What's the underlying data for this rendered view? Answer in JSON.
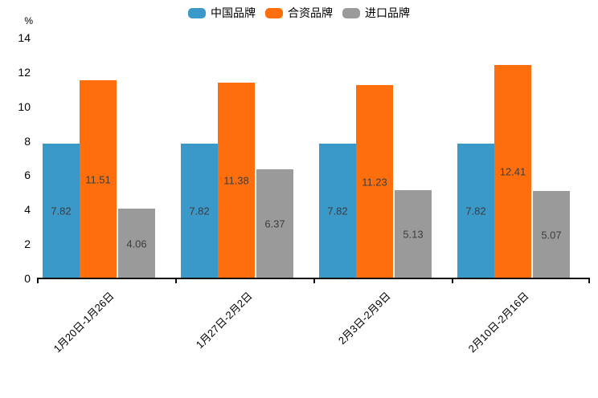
{
  "unit_label": "%",
  "legend": {
    "position": "top-center",
    "items": [
      {
        "key": "china-brand",
        "label": "中国品牌",
        "color": "#3a99c9"
      },
      {
        "key": "joint-venture-brand",
        "label": "合资品牌",
        "color": "#ff6e0d"
      },
      {
        "key": "imported-brand",
        "label": "进口品牌",
        "color": "#9a9a9a"
      }
    ]
  },
  "chart_data": {
    "type": "bar",
    "title": "",
    "xlabel": "",
    "ylabel": "%",
    "categories": [
      "1月20日-1月26日",
      "1月27日-2月2日",
      "2月3日-2月9日",
      "2月10日-2月16日"
    ],
    "series": [
      {
        "key": "china-brand",
        "name": "中国品牌",
        "color": "#3a99c9",
        "values": [
          7.82,
          7.82,
          7.82,
          7.82
        ]
      },
      {
        "key": "joint-venture-brand",
        "name": "合资品牌",
        "color": "#ff6e0d",
        "values": [
          11.51,
          11.38,
          11.23,
          12.41
        ]
      },
      {
        "key": "imported-brand",
        "name": "进口品牌",
        "color": "#9a9a9a",
        "values": [
          4.06,
          6.37,
          5.13,
          5.07
        ]
      }
    ],
    "ylim": [
      0,
      14
    ],
    "yticks": [
      0,
      2,
      4,
      6,
      8,
      10,
      12,
      14
    ],
    "grid": false,
    "value_labels": true,
    "value_label_position": "center-inside",
    "legend_position": "top",
    "xtick_rotation_deg": 45
  },
  "colors": {
    "axis": "#111111",
    "tick_text": "#000000",
    "value_label_text": "#3d3d3d",
    "background": "#ffffff"
  }
}
